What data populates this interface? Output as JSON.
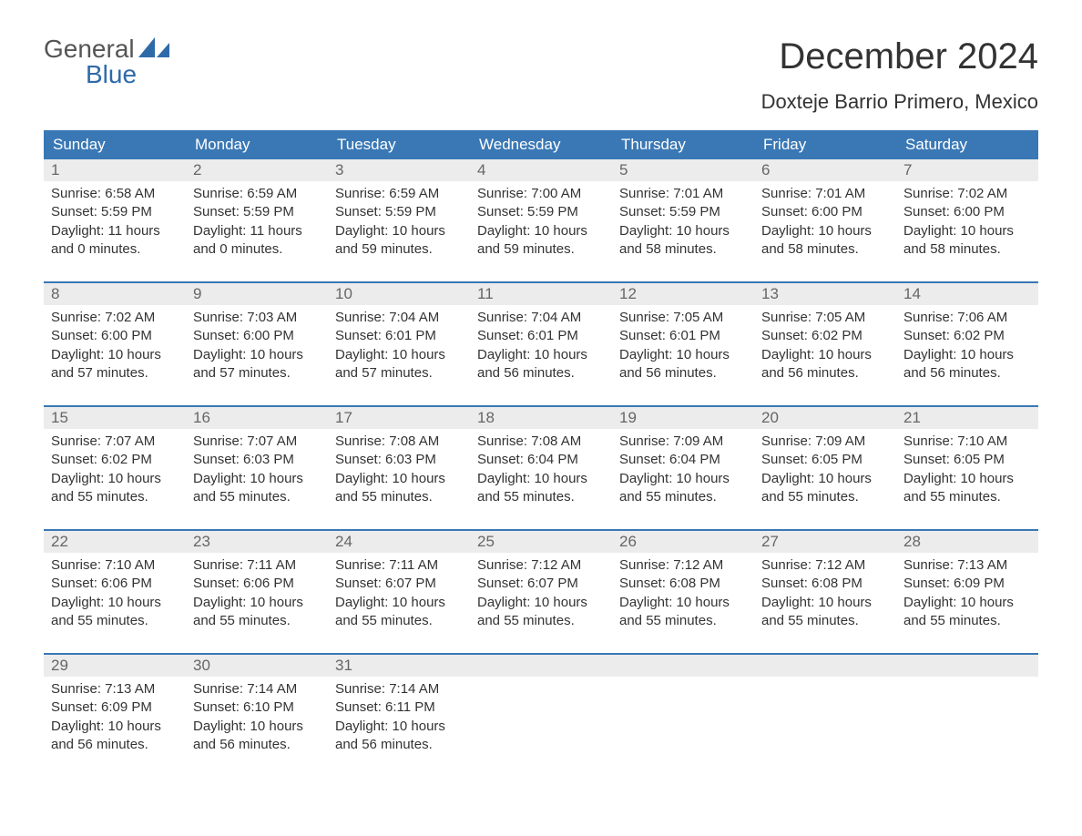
{
  "brand": {
    "word1": "General",
    "word2": "Blue",
    "accent_color": "#2f6aa8",
    "text_color": "#555555"
  },
  "title": "December 2024",
  "location": "Doxteje Barrio Primero, Mexico",
  "colors": {
    "header_bg": "#3a78b5",
    "header_text": "#ffffff",
    "daynum_bg": "#ececec",
    "daynum_text": "#666666",
    "body_text": "#333333",
    "week_border": "#3a78b5",
    "page_bg": "#ffffff"
  },
  "weekdays": [
    "Sunday",
    "Monday",
    "Tuesday",
    "Wednesday",
    "Thursday",
    "Friday",
    "Saturday"
  ],
  "weeks": [
    {
      "days": [
        {
          "num": "1",
          "sunrise": "Sunrise: 6:58 AM",
          "sunset": "Sunset: 5:59 PM",
          "daylight1": "Daylight: 11 hours",
          "daylight2": "and 0 minutes."
        },
        {
          "num": "2",
          "sunrise": "Sunrise: 6:59 AM",
          "sunset": "Sunset: 5:59 PM",
          "daylight1": "Daylight: 11 hours",
          "daylight2": "and 0 minutes."
        },
        {
          "num": "3",
          "sunrise": "Sunrise: 6:59 AM",
          "sunset": "Sunset: 5:59 PM",
          "daylight1": "Daylight: 10 hours",
          "daylight2": "and 59 minutes."
        },
        {
          "num": "4",
          "sunrise": "Sunrise: 7:00 AM",
          "sunset": "Sunset: 5:59 PM",
          "daylight1": "Daylight: 10 hours",
          "daylight2": "and 59 minutes."
        },
        {
          "num": "5",
          "sunrise": "Sunrise: 7:01 AM",
          "sunset": "Sunset: 5:59 PM",
          "daylight1": "Daylight: 10 hours",
          "daylight2": "and 58 minutes."
        },
        {
          "num": "6",
          "sunrise": "Sunrise: 7:01 AM",
          "sunset": "Sunset: 6:00 PM",
          "daylight1": "Daylight: 10 hours",
          "daylight2": "and 58 minutes."
        },
        {
          "num": "7",
          "sunrise": "Sunrise: 7:02 AM",
          "sunset": "Sunset: 6:00 PM",
          "daylight1": "Daylight: 10 hours",
          "daylight2": "and 58 minutes."
        }
      ]
    },
    {
      "days": [
        {
          "num": "8",
          "sunrise": "Sunrise: 7:02 AM",
          "sunset": "Sunset: 6:00 PM",
          "daylight1": "Daylight: 10 hours",
          "daylight2": "and 57 minutes."
        },
        {
          "num": "9",
          "sunrise": "Sunrise: 7:03 AM",
          "sunset": "Sunset: 6:00 PM",
          "daylight1": "Daylight: 10 hours",
          "daylight2": "and 57 minutes."
        },
        {
          "num": "10",
          "sunrise": "Sunrise: 7:04 AM",
          "sunset": "Sunset: 6:01 PM",
          "daylight1": "Daylight: 10 hours",
          "daylight2": "and 57 minutes."
        },
        {
          "num": "11",
          "sunrise": "Sunrise: 7:04 AM",
          "sunset": "Sunset: 6:01 PM",
          "daylight1": "Daylight: 10 hours",
          "daylight2": "and 56 minutes."
        },
        {
          "num": "12",
          "sunrise": "Sunrise: 7:05 AM",
          "sunset": "Sunset: 6:01 PM",
          "daylight1": "Daylight: 10 hours",
          "daylight2": "and 56 minutes."
        },
        {
          "num": "13",
          "sunrise": "Sunrise: 7:05 AM",
          "sunset": "Sunset: 6:02 PM",
          "daylight1": "Daylight: 10 hours",
          "daylight2": "and 56 minutes."
        },
        {
          "num": "14",
          "sunrise": "Sunrise: 7:06 AM",
          "sunset": "Sunset: 6:02 PM",
          "daylight1": "Daylight: 10 hours",
          "daylight2": "and 56 minutes."
        }
      ]
    },
    {
      "days": [
        {
          "num": "15",
          "sunrise": "Sunrise: 7:07 AM",
          "sunset": "Sunset: 6:02 PM",
          "daylight1": "Daylight: 10 hours",
          "daylight2": "and 55 minutes."
        },
        {
          "num": "16",
          "sunrise": "Sunrise: 7:07 AM",
          "sunset": "Sunset: 6:03 PM",
          "daylight1": "Daylight: 10 hours",
          "daylight2": "and 55 minutes."
        },
        {
          "num": "17",
          "sunrise": "Sunrise: 7:08 AM",
          "sunset": "Sunset: 6:03 PM",
          "daylight1": "Daylight: 10 hours",
          "daylight2": "and 55 minutes."
        },
        {
          "num": "18",
          "sunrise": "Sunrise: 7:08 AM",
          "sunset": "Sunset: 6:04 PM",
          "daylight1": "Daylight: 10 hours",
          "daylight2": "and 55 minutes."
        },
        {
          "num": "19",
          "sunrise": "Sunrise: 7:09 AM",
          "sunset": "Sunset: 6:04 PM",
          "daylight1": "Daylight: 10 hours",
          "daylight2": "and 55 minutes."
        },
        {
          "num": "20",
          "sunrise": "Sunrise: 7:09 AM",
          "sunset": "Sunset: 6:05 PM",
          "daylight1": "Daylight: 10 hours",
          "daylight2": "and 55 minutes."
        },
        {
          "num": "21",
          "sunrise": "Sunrise: 7:10 AM",
          "sunset": "Sunset: 6:05 PM",
          "daylight1": "Daylight: 10 hours",
          "daylight2": "and 55 minutes."
        }
      ]
    },
    {
      "days": [
        {
          "num": "22",
          "sunrise": "Sunrise: 7:10 AM",
          "sunset": "Sunset: 6:06 PM",
          "daylight1": "Daylight: 10 hours",
          "daylight2": "and 55 minutes."
        },
        {
          "num": "23",
          "sunrise": "Sunrise: 7:11 AM",
          "sunset": "Sunset: 6:06 PM",
          "daylight1": "Daylight: 10 hours",
          "daylight2": "and 55 minutes."
        },
        {
          "num": "24",
          "sunrise": "Sunrise: 7:11 AM",
          "sunset": "Sunset: 6:07 PM",
          "daylight1": "Daylight: 10 hours",
          "daylight2": "and 55 minutes."
        },
        {
          "num": "25",
          "sunrise": "Sunrise: 7:12 AM",
          "sunset": "Sunset: 6:07 PM",
          "daylight1": "Daylight: 10 hours",
          "daylight2": "and 55 minutes."
        },
        {
          "num": "26",
          "sunrise": "Sunrise: 7:12 AM",
          "sunset": "Sunset: 6:08 PM",
          "daylight1": "Daylight: 10 hours",
          "daylight2": "and 55 minutes."
        },
        {
          "num": "27",
          "sunrise": "Sunrise: 7:12 AM",
          "sunset": "Sunset: 6:08 PM",
          "daylight1": "Daylight: 10 hours",
          "daylight2": "and 55 minutes."
        },
        {
          "num": "28",
          "sunrise": "Sunrise: 7:13 AM",
          "sunset": "Sunset: 6:09 PM",
          "daylight1": "Daylight: 10 hours",
          "daylight2": "and 55 minutes."
        }
      ]
    },
    {
      "days": [
        {
          "num": "29",
          "sunrise": "Sunrise: 7:13 AM",
          "sunset": "Sunset: 6:09 PM",
          "daylight1": "Daylight: 10 hours",
          "daylight2": "and 56 minutes."
        },
        {
          "num": "30",
          "sunrise": "Sunrise: 7:14 AM",
          "sunset": "Sunset: 6:10 PM",
          "daylight1": "Daylight: 10 hours",
          "daylight2": "and 56 minutes."
        },
        {
          "num": "31",
          "sunrise": "Sunrise: 7:14 AM",
          "sunset": "Sunset: 6:11 PM",
          "daylight1": "Daylight: 10 hours",
          "daylight2": "and 56 minutes."
        },
        {
          "num": "",
          "sunrise": "",
          "sunset": "",
          "daylight1": "",
          "daylight2": ""
        },
        {
          "num": "",
          "sunrise": "",
          "sunset": "",
          "daylight1": "",
          "daylight2": ""
        },
        {
          "num": "",
          "sunrise": "",
          "sunset": "",
          "daylight1": "",
          "daylight2": ""
        },
        {
          "num": "",
          "sunrise": "",
          "sunset": "",
          "daylight1": "",
          "daylight2": ""
        }
      ]
    }
  ]
}
